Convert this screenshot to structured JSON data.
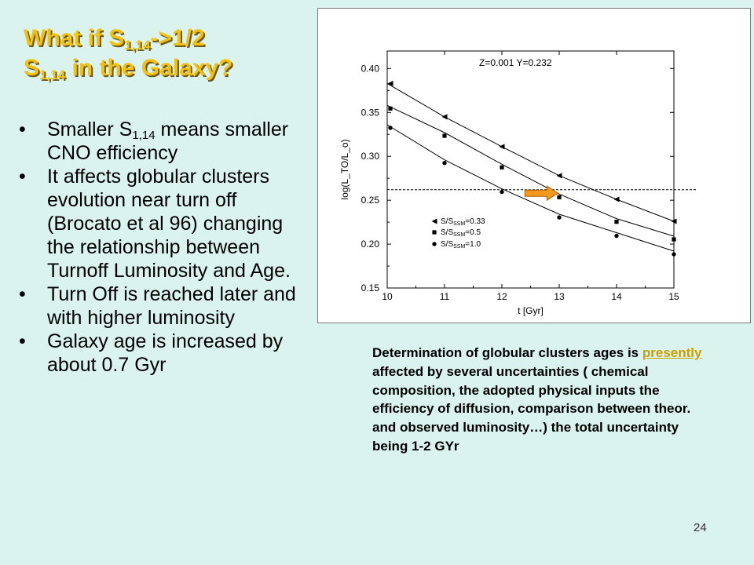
{
  "title": {
    "line1_pre": "What if S",
    "line1_sub": "1,14",
    "line1_post": "->1/2",
    "line2_pre": "S",
    "line2_sub": "1,14",
    "line2_post": " in the Galaxy?"
  },
  "bullets": {
    "b1_pre": "Smaller S",
    "b1_sub": "1,14",
    "b1_post": " means smaller CNO efficiency",
    "b2": " It affects globular clusters evolution near turn off (Brocato et al 96) changing the relationship between Turnoff Luminosity and Age.",
    "b3": "Turn Off is reached later and with higher luminosity",
    "b4": "Galaxy age is increased by  about 0.7 Gyr"
  },
  "caption": {
    "pre": "Determination of globular clusters ages is ",
    "highlight": "presently",
    "post": " affected by several uncertainties ( chemical composition, the adopted physical inputs  the efficiency of diffusion, comparison between theor. and observed luminosity…) the  total uncertainty being 1-2 GYr"
  },
  "page_number": "24",
  "colors": {
    "background": "#dbf3ef",
    "title": "#f4c20d",
    "title_shadow": "#6b5a1c",
    "arrow_fill": "#f39a1e",
    "arrow_stroke": "#b06000"
  },
  "chart_data": {
    "type": "scatter",
    "annotation": "Z=0.001 Y=0.232",
    "xlabel": "t [Gyr]",
    "ylabel": "log(L_TO/L_o)",
    "xlim": [
      10,
      15
    ],
    "ylim": [
      0.15,
      0.42
    ],
    "x_ticks": [
      "10",
      "11",
      "12",
      "13",
      "14",
      "15"
    ],
    "y_ticks": [
      "0.15",
      "0.20",
      "0.25",
      "0.30",
      "0.35",
      "0.40"
    ],
    "reference_line_y": 0.262,
    "arrow": {
      "from": [
        12.4,
        0.258
      ],
      "to": [
        12.95,
        0.258
      ]
    },
    "series": [
      {
        "name": "S/S_SSM=0.33",
        "label_main": "S/S",
        "label_sub": "SSM",
        "label_value": "=0.33",
        "marker": "triangle",
        "x": [
          10,
          11,
          12,
          13,
          14,
          15
        ],
        "y": [
          0.383,
          0.345,
          0.311,
          0.278,
          0.251,
          0.226
        ]
      },
      {
        "name": "S/S_SSM=0.5",
        "label_main": "S/S",
        "label_sub": "SSM",
        "label_value": "=0.5",
        "marker": "square",
        "x": [
          10,
          11,
          12,
          13,
          14,
          15
        ],
        "y": [
          0.358,
          0.327,
          0.291,
          0.257,
          0.229,
          0.209
        ]
      },
      {
        "name": "S/S_SSM=1.0",
        "label_main": "S/S",
        "label_sub": "SSM",
        "label_value": "=1.0",
        "marker": "circle",
        "x": [
          10,
          11,
          12,
          13,
          14,
          15
        ],
        "y": [
          0.336,
          0.296,
          0.263,
          0.234,
          0.213,
          0.192
        ]
      }
    ]
  }
}
